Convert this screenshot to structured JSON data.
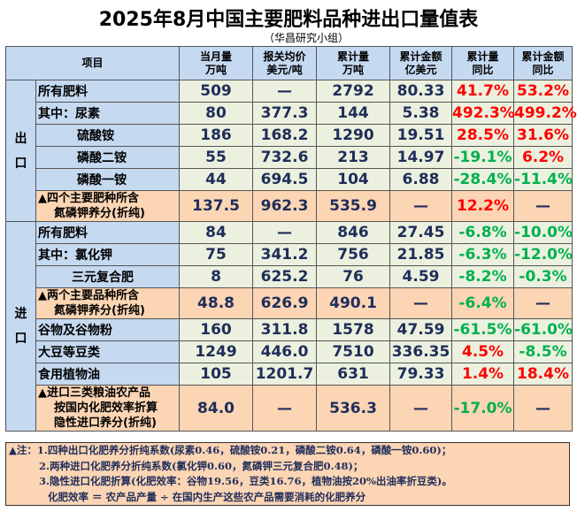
{
  "title": "2025年8月中国主要肥料品种进出口量值表",
  "subtitle": "（华昌研究小组）",
  "headers": {
    "item": "项目",
    "c1": [
      "当月量",
      "万吨"
    ],
    "c2": [
      "报关均价",
      "美元/吨"
    ],
    "c3": [
      "累计量",
      "万吨"
    ],
    "c4": [
      "累计金额",
      "亿美元"
    ],
    "c5": [
      "累计量",
      "同比"
    ],
    "c6": [
      "累计金额",
      "同比"
    ]
  },
  "export": {
    "label": [
      "出",
      "口"
    ],
    "rows": [
      {
        "name": "所有肥料",
        "v": [
          "509",
          "—",
          "2792",
          "80.33",
          "41.7%",
          "53.2%"
        ]
      },
      {
        "name": "其中：尿素",
        "v": [
          "80",
          "377.3",
          "144",
          "5.38",
          "492.3%",
          "499.2%"
        ]
      },
      {
        "name": "硫酸铵",
        "v": [
          "186",
          "168.2",
          "1290",
          "19.51",
          "28.5%",
          "31.6%"
        ]
      },
      {
        "name": "磷酸二铵",
        "v": [
          "55",
          "732.6",
          "213",
          "14.97",
          "-19.1%",
          "6.2%"
        ]
      },
      {
        "name": "磷酸一铵",
        "v": [
          "44",
          "694.5",
          "104",
          "6.88",
          "-28.4%",
          "-11.4%"
        ]
      },
      {
        "name": [
          "▲四个主要肥种所含",
          "氮磷钾养分(折纯)"
        ],
        "v": [
          "137.5",
          "962.3",
          "535.9",
          "—",
          "12.2%",
          "—"
        ]
      }
    ]
  },
  "import": {
    "label": [
      "进",
      "口"
    ],
    "rows": [
      {
        "name": "所有肥料",
        "v": [
          "84",
          "—",
          "846",
          "27.45",
          "-6.8%",
          "-10.0%"
        ]
      },
      {
        "name": "其中：氯化钾",
        "v": [
          "75",
          "341.2",
          "756",
          "21.85",
          "-6.3%",
          "-12.0%"
        ]
      },
      {
        "name": "三元复合肥",
        "v": [
          "8",
          "625.2",
          "76",
          "4.59",
          "-8.2%",
          "-0.3%"
        ]
      },
      {
        "name": [
          "▲两个主要品种所含",
          "氮磷钾养分(折纯)"
        ],
        "v": [
          "48.8",
          "626.9",
          "490.1",
          "—",
          "-6.4%",
          "—"
        ]
      },
      {
        "name": "谷物及谷物粉",
        "v": [
          "160",
          "311.8",
          "1578",
          "47.59",
          "-61.5%",
          "-61.0%"
        ]
      },
      {
        "name": "大豆等豆类",
        "v": [
          "1249",
          "446.0",
          "7510",
          "336.35",
          "4.5%",
          "-8.5%"
        ]
      },
      {
        "name": "食用植物油",
        "v": [
          "105",
          "1201.7",
          "631",
          "79.33",
          "1.4%",
          "18.4%"
        ]
      },
      {
        "name": [
          "▲进口三类粮油农产品",
          "按国内化肥效率折算",
          "隐性进口养分(折纯)"
        ],
        "v": [
          "84.0",
          "—",
          "536.3",
          "—",
          "-17.0%",
          "—"
        ]
      }
    ]
  },
  "notes": [
    "▲注：1.四种出口化肥养分折纯系数(尿素0.46，硫酸铵0.21，磷酸二铵0.64，磷酸一铵0.60)；",
    "2.两种进口化肥养分折纯系数(氯化钾0.60，氮磷钾三元复合肥0.48)；",
    "3.隐性进口化肥折算(化肥效率：谷物19.56，豆类16.76，植物油按20%出油率折豆类)。",
    "化肥效率 ＝ 农产品产量 ÷ 在国内生产这些农产品需要消耗的化肥养分"
  ],
  "colors": {
    "up": "#ff0000",
    "down": "#00b050",
    "header": "#c5d9f1",
    "data": "#ebf1de",
    "summary": "#fcd5b4"
  }
}
